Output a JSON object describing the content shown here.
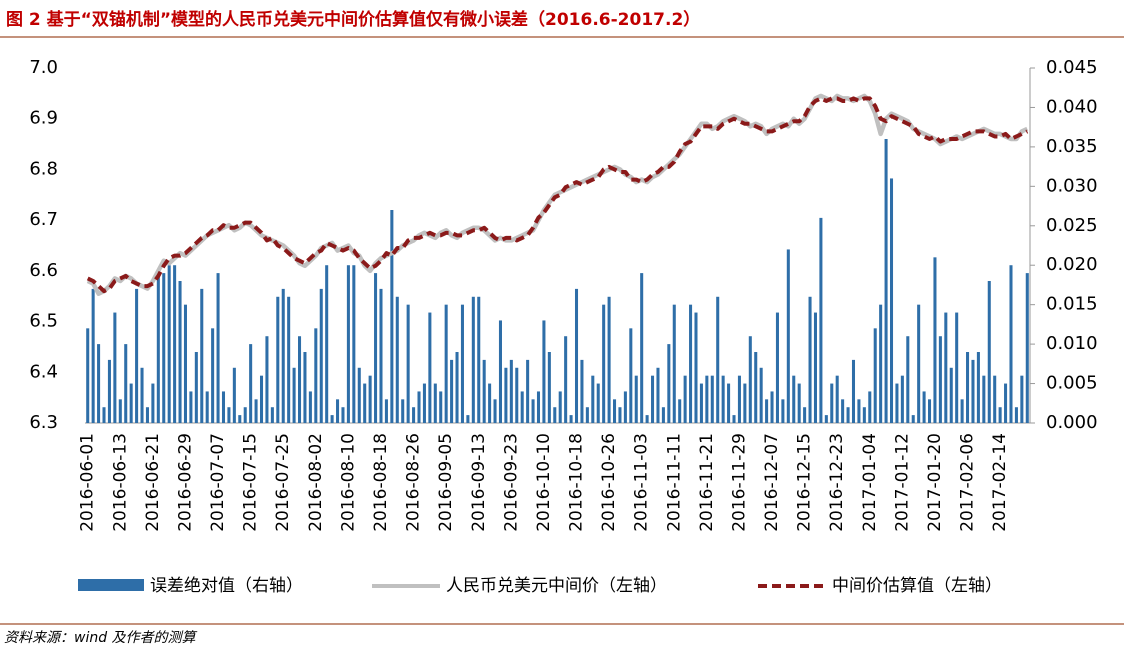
{
  "chart_data": {
    "type": "combo",
    "title": "图 2 基于“双锚机制”模型的人民币兑美元中间价估算值仅有微小误差（2016.6-2017.2）",
    "source": "资料来源：wind 及作者的测算",
    "categories": [
      "2016-06-01",
      null,
      null,
      null,
      null,
      null,
      "2016-06-13",
      null,
      null,
      null,
      null,
      null,
      "2016-06-21",
      null,
      null,
      null,
      null,
      null,
      "2016-06-29",
      null,
      null,
      null,
      null,
      null,
      "2016-07-07",
      null,
      null,
      null,
      null,
      null,
      "2016-07-15",
      null,
      null,
      null,
      null,
      null,
      "2016-07-25",
      null,
      null,
      null,
      null,
      null,
      "2016-08-02",
      null,
      null,
      null,
      null,
      null,
      "2016-08-10",
      null,
      null,
      null,
      null,
      null,
      "2016-08-18",
      null,
      null,
      null,
      null,
      null,
      "2016-08-26",
      null,
      null,
      null,
      null,
      null,
      "2016-09-05",
      null,
      null,
      null,
      null,
      null,
      "2016-09-13",
      null,
      null,
      null,
      null,
      null,
      "2016-09-23",
      null,
      null,
      null,
      null,
      null,
      "2016-10-10",
      null,
      null,
      null,
      null,
      null,
      "2016-10-18",
      null,
      null,
      null,
      null,
      null,
      "2016-10-26",
      null,
      null,
      null,
      null,
      null,
      "2016-11-03",
      null,
      null,
      null,
      null,
      null,
      "2016-11-11",
      null,
      null,
      null,
      null,
      null,
      "2016-11-21",
      null,
      null,
      null,
      null,
      null,
      "2016-11-29",
      null,
      null,
      null,
      null,
      null,
      "2016-12-07",
      null,
      null,
      null,
      null,
      null,
      "2016-12-15",
      null,
      null,
      null,
      null,
      null,
      "2016-12-23",
      null,
      null,
      null,
      null,
      null,
      "2017-01-04",
      null,
      null,
      null,
      null,
      null,
      "2017-01-12",
      null,
      null,
      null,
      null,
      null,
      "2017-01-20",
      null,
      null,
      null,
      null,
      null,
      "2017-02-06",
      null,
      null,
      null,
      null,
      null,
      "2017-02-14",
      null,
      null,
      null,
      null,
      null
    ],
    "ylim": [
      6.3,
      7.0
    ],
    "yticks": [
      6.3,
      6.4,
      6.5,
      6.6,
      6.7,
      6.8,
      6.9,
      {
        "value": 7,
        "label": "7.0"
      }
    ],
    "y2lim": [
      0,
      0.045
    ],
    "y2ticks": [
      {
        "value": 0,
        "label": "0.000"
      },
      {
        "value": 0.005,
        "label": "0.005"
      },
      {
        "value": 0.01,
        "label": "0.010"
      },
      {
        "value": 0.015,
        "label": "0.015"
      },
      {
        "value": 0.02,
        "label": "0.020"
      },
      {
        "value": 0.025,
        "label": "0.025"
      },
      {
        "value": 0.03,
        "label": "0.030"
      },
      {
        "value": 0.035,
        "label": "0.035"
      },
      {
        "value": 0.04,
        "label": "0.040"
      },
      {
        "value": 0.045,
        "label": "0.045"
      }
    ],
    "series": [
      {
        "name": "误差绝对值（右轴）",
        "type": "bar",
        "axis": "y2",
        "color": "#2e6ea8",
        "values": [
          0.012,
          0.017,
          0.01,
          0.002,
          0.008,
          0.014,
          0.003,
          0.01,
          0.005,
          0.017,
          0.007,
          0.002,
          0.005,
          0.019,
          0.019,
          0.02,
          0.02,
          0.018,
          0.015,
          0.004,
          0.009,
          0.017,
          0.004,
          0.012,
          0.019,
          0.004,
          0.002,
          0.007,
          0.001,
          0.002,
          0.01,
          0.003,
          0.006,
          0.011,
          0.002,
          0.016,
          0.017,
          0.016,
          0.007,
          0.011,
          0.009,
          0.004,
          0.012,
          0.017,
          0.02,
          0.001,
          0.003,
          0.002,
          0.02,
          0.02,
          0.007,
          0.005,
          0.006,
          0.019,
          0.017,
          0.003,
          0.027,
          0.016,
          0.003,
          0.015,
          0.002,
          0.004,
          0.005,
          0.014,
          0.005,
          0.004,
          0.015,
          0.008,
          0.009,
          0.015,
          0.001,
          0.016,
          0.016,
          0.008,
          0.005,
          0.003,
          0.013,
          0.007,
          0.008,
          0.007,
          0.004,
          0.008,
          0.003,
          0.004,
          0.013,
          0.009,
          0.002,
          0.004,
          0.011,
          0.001,
          0.017,
          0.008,
          0.002,
          0.006,
          0.005,
          0.015,
          0.016,
          0.003,
          0.002,
          0.004,
          0.012,
          0.006,
          0.019,
          0.001,
          0.006,
          0.007,
          0.002,
          0.01,
          0.015,
          0.003,
          0.006,
          0.015,
          0.014,
          0.005,
          0.006,
          0.006,
          0.016,
          0.006,
          0.005,
          0.001,
          0.006,
          0.005,
          0.011,
          0.009,
          0.007,
          0.003,
          0.004,
          0.014,
          0.003,
          0.022,
          0.006,
          0.005,
          0.002,
          0.016,
          0.014,
          0.026,
          0.001,
          0.005,
          0.006,
          0.003,
          0.002,
          0.008,
          0.003,
          0.002,
          0.004,
          0.012,
          0.015,
          0.036,
          0.031,
          0.005,
          0.006,
          0.011,
          0.001,
          0.015,
          0.004,
          0.003,
          0.021,
          0.011,
          0.014,
          0.007,
          0.014,
          0.003,
          0.009,
          0.008,
          0.009,
          0.006,
          0.018,
          0.006,
          0.002,
          0.005,
          0.02,
          0.002,
          0.006,
          0.019
        ]
      },
      {
        "name": "人民币兑美元中间价（左轴）",
        "type": "line",
        "color": "#c0c0c0",
        "dashed": false,
        "values": [
          6.58,
          6.575,
          6.555,
          6.56,
          6.57,
          6.585,
          6.58,
          6.59,
          6.585,
          6.575,
          6.57,
          6.565,
          6.58,
          6.6,
          6.62,
          6.615,
          6.625,
          6.635,
          6.63,
          6.64,
          6.65,
          6.66,
          6.67,
          6.675,
          6.68,
          6.685,
          6.69,
          6.68,
          6.685,
          6.695,
          6.69,
          6.68,
          6.67,
          6.665,
          6.66,
          6.655,
          6.65,
          6.64,
          6.63,
          6.615,
          6.61,
          6.62,
          6.63,
          6.645,
          6.65,
          6.655,
          6.64,
          6.645,
          6.65,
          6.635,
          6.63,
          6.61,
          6.6,
          6.615,
          6.625,
          6.63,
          6.635,
          6.64,
          6.65,
          6.655,
          6.66,
          6.67,
          6.675,
          6.67,
          6.665,
          6.675,
          6.68,
          6.67,
          6.665,
          6.675,
          6.68,
          6.685,
          6.685,
          6.68,
          6.67,
          6.66,
          6.665,
          6.66,
          6.66,
          6.665,
          6.67,
          6.675,
          6.68,
          6.7,
          6.72,
          6.735,
          6.75,
          6.755,
          6.76,
          6.765,
          6.77,
          6.775,
          6.78,
          6.785,
          6.79,
          6.795,
          6.8,
          6.805,
          6.8,
          6.79,
          6.785,
          6.775,
          6.78,
          6.775,
          6.785,
          6.79,
          6.8,
          6.81,
          6.82,
          6.83,
          6.845,
          6.86,
          6.875,
          6.89,
          6.89,
          6.88,
          6.885,
          6.895,
          6.9,
          6.905,
          6.9,
          6.895,
          6.885,
          6.89,
          6.885,
          6.87,
          6.88,
          6.885,
          6.89,
          6.885,
          6.9,
          6.89,
          6.9,
          6.92,
          6.94,
          6.945,
          6.94,
          6.935,
          6.945,
          6.94,
          6.94,
          6.935,
          6.94,
          6.945,
          6.935,
          6.91,
          6.87,
          6.9,
          6.91,
          6.905,
          6.9,
          6.895,
          6.88,
          6.875,
          6.87,
          6.865,
          6.86,
          6.85,
          6.855,
          6.86,
          6.865,
          6.86,
          6.865,
          6.87,
          6.875,
          6.88,
          6.875,
          6.87,
          6.87,
          6.865,
          6.86,
          6.86,
          6.875,
          6.88
        ]
      },
      {
        "name": "中间价估算值（左轴）",
        "type": "line",
        "color": "#8b1a1a",
        "dashed": true,
        "values": [
          6.585,
          6.58,
          6.57,
          6.56,
          6.565,
          6.58,
          6.585,
          6.59,
          6.58,
          6.575,
          6.57,
          6.57,
          6.575,
          6.59,
          6.61,
          6.625,
          6.63,
          6.63,
          6.635,
          6.645,
          6.655,
          6.665,
          6.67,
          6.68,
          6.68,
          6.69,
          6.685,
          6.685,
          6.69,
          6.695,
          6.695,
          6.685,
          6.675,
          6.66,
          6.665,
          6.65,
          6.645,
          6.635,
          6.625,
          6.62,
          6.615,
          6.625,
          6.635,
          6.64,
          6.655,
          6.65,
          6.645,
          6.64,
          6.645,
          6.64,
          6.625,
          6.615,
          6.605,
          6.61,
          6.62,
          6.635,
          6.63,
          6.645,
          6.645,
          6.66,
          6.665,
          6.665,
          6.67,
          6.675,
          6.67,
          6.67,
          6.675,
          6.675,
          6.67,
          6.67,
          6.675,
          6.68,
          6.68,
          6.685,
          6.675,
          6.665,
          6.66,
          6.665,
          6.665,
          6.66,
          6.665,
          6.67,
          6.685,
          6.705,
          6.715,
          6.73,
          6.745,
          6.75,
          6.765,
          6.77,
          6.775,
          6.77,
          6.775,
          6.78,
          6.785,
          6.8,
          6.805,
          6.8,
          6.795,
          6.795,
          6.78,
          6.78,
          6.775,
          6.78,
          6.79,
          6.795,
          6.805,
          6.805,
          6.815,
          6.835,
          6.85,
          6.855,
          6.87,
          6.885,
          6.885,
          6.885,
          6.88,
          6.89,
          6.895,
          6.9,
          6.895,
          6.89,
          6.89,
          6.885,
          6.88,
          6.875,
          6.875,
          6.88,
          6.885,
          6.89,
          6.895,
          6.895,
          6.905,
          6.925,
          6.935,
          6.94,
          6.935,
          6.94,
          6.94,
          6.935,
          6.935,
          6.94,
          6.935,
          6.94,
          6.94,
          6.925,
          6.9,
          6.895,
          6.905,
          6.9,
          6.895,
          6.89,
          6.885,
          6.87,
          6.865,
          6.86,
          6.865,
          6.855,
          6.86,
          6.86,
          6.86,
          6.865,
          6.87,
          6.875,
          6.875,
          6.875,
          6.87,
          6.865,
          6.865,
          6.87,
          6.86,
          6.865,
          6.87,
          6.875
        ]
      }
    ]
  }
}
